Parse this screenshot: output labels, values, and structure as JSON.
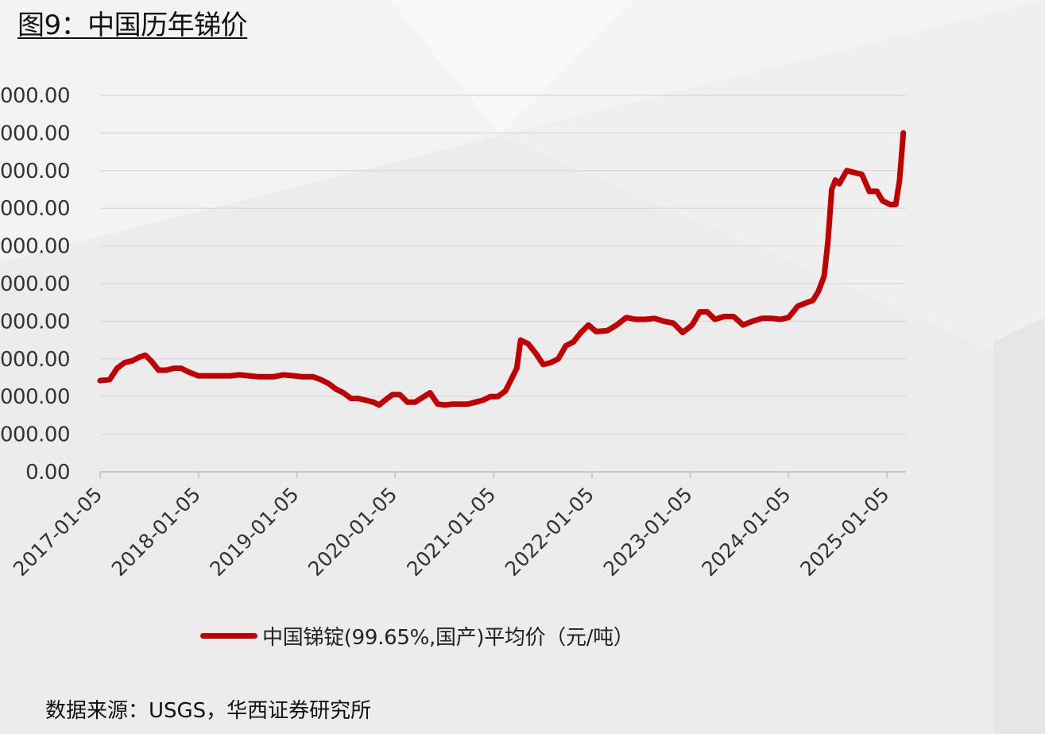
{
  "title": "图9：中国历年锑价",
  "source": "数据来源：USGS，华西证券研究所",
  "chart_data": {
    "type": "line",
    "ylim": [
      0,
      200000
    ],
    "y_ticks": [
      0,
      20000,
      40000,
      60000,
      80000,
      100000,
      120000,
      140000,
      160000,
      180000,
      200000
    ],
    "y_tick_labels": [
      "0.00",
      "000.00",
      "000.00",
      "000.00",
      "000.00",
      "000.00",
      "000.00",
      "000.00",
      "000.00",
      "000.00",
      "000.00"
    ],
    "x_tick_labels": [
      "2017-01-05",
      "2018-01-05",
      "2019-01-05",
      "2020-01-05",
      "2021-01-05",
      "2022-01-05",
      "2023-01-05",
      "2024-01-05",
      "2025-01-05"
    ],
    "grid": true,
    "legend_position": "bottom",
    "colors": {
      "series": "#c00000",
      "grid": "#dcdcdc",
      "axis": "#c8c8c8"
    },
    "series": [
      {
        "name": "中国锑锭(99.65%,国产)平均价（元/吨）",
        "points": [
          [
            "2017-01-05",
            48500
          ],
          [
            "2017-02-09",
            49000
          ],
          [
            "2017-03-09",
            55000
          ],
          [
            "2017-04-06",
            58000
          ],
          [
            "2017-05-04",
            59000
          ],
          [
            "2017-06-01",
            61000
          ],
          [
            "2017-06-22",
            62000
          ],
          [
            "2017-07-13",
            59000
          ],
          [
            "2017-08-10",
            54000
          ],
          [
            "2017-09-07",
            54000
          ],
          [
            "2017-10-05",
            55000
          ],
          [
            "2017-11-02",
            55000
          ],
          [
            "2017-11-30",
            53000
          ],
          [
            "2018-01-05",
            51000
          ],
          [
            "2018-03-01",
            51000
          ],
          [
            "2018-05-03",
            51000
          ],
          [
            "2018-06-07",
            51500
          ],
          [
            "2018-07-12",
            51000
          ],
          [
            "2018-08-16",
            50500
          ],
          [
            "2018-10-11",
            50500
          ],
          [
            "2018-11-15",
            51500
          ],
          [
            "2018-12-27",
            51000
          ],
          [
            "2019-01-24",
            50500
          ],
          [
            "2019-03-07",
            50500
          ],
          [
            "2019-04-04",
            49000
          ],
          [
            "2019-05-02",
            47000
          ],
          [
            "2019-05-30",
            44000
          ],
          [
            "2019-06-27",
            42000
          ],
          [
            "2019-07-25",
            39000
          ],
          [
            "2019-08-22",
            39000
          ],
          [
            "2019-09-19",
            38000
          ],
          [
            "2019-10-17",
            37000
          ],
          [
            "2019-11-07",
            35500
          ],
          [
            "2019-11-28",
            38000
          ],
          [
            "2019-12-26",
            41000
          ],
          [
            "2020-01-23",
            41000
          ],
          [
            "2020-02-20",
            37000
          ],
          [
            "2020-03-19",
            37000
          ],
          [
            "2020-04-16",
            39500
          ],
          [
            "2020-05-14",
            42000
          ],
          [
            "2020-06-11",
            36000
          ],
          [
            "2020-07-09",
            35500
          ],
          [
            "2020-08-06",
            36000
          ],
          [
            "2020-09-03",
            36000
          ],
          [
            "2020-10-01",
            36000
          ],
          [
            "2020-10-29",
            37000
          ],
          [
            "2020-11-26",
            38000
          ],
          [
            "2020-12-24",
            40000
          ],
          [
            "2021-01-21",
            40000
          ],
          [
            "2021-02-18",
            43000
          ],
          [
            "2021-03-11",
            49000
          ],
          [
            "2021-04-01",
            55000
          ],
          [
            "2021-04-15",
            70000
          ],
          [
            "2021-05-13",
            68000
          ],
          [
            "2021-06-10",
            63000
          ],
          [
            "2021-07-08",
            57000
          ],
          [
            "2021-08-05",
            58000
          ],
          [
            "2021-09-02",
            60000
          ],
          [
            "2021-09-30",
            67000
          ],
          [
            "2021-10-28",
            69000
          ],
          [
            "2021-11-25",
            74000
          ],
          [
            "2021-12-23",
            78000
          ],
          [
            "2022-01-20",
            74500
          ],
          [
            "2022-03-03",
            75000
          ],
          [
            "2022-04-07",
            78000
          ],
          [
            "2022-05-12",
            82000
          ],
          [
            "2022-06-16",
            81000
          ],
          [
            "2022-07-21",
            81000
          ],
          [
            "2022-08-25",
            81500
          ],
          [
            "2022-09-29",
            80000
          ],
          [
            "2022-11-03",
            79000
          ],
          [
            "2022-12-08",
            74000
          ],
          [
            "2023-01-12",
            78000
          ],
          [
            "2023-02-09",
            85000
          ],
          [
            "2023-03-09",
            85000
          ],
          [
            "2023-04-06",
            81000
          ],
          [
            "2023-05-11",
            82500
          ],
          [
            "2023-06-15",
            82500
          ],
          [
            "2023-07-20",
            78000
          ],
          [
            "2023-08-24",
            80000
          ],
          [
            "2023-09-28",
            81500
          ],
          [
            "2023-11-02",
            81500
          ],
          [
            "2023-12-07",
            81000
          ],
          [
            "2024-01-05",
            82000
          ],
          [
            "2024-02-08",
            88000
          ],
          [
            "2024-03-14",
            90000
          ],
          [
            "2024-04-04",
            91000
          ],
          [
            "2024-04-25",
            96000
          ],
          [
            "2024-05-16",
            104000
          ],
          [
            "2024-05-30",
            122000
          ],
          [
            "2024-06-13",
            150000
          ],
          [
            "2024-06-27",
            155000
          ],
          [
            "2024-07-11",
            153000
          ],
          [
            "2024-08-08",
            160000
          ],
          [
            "2024-09-05",
            159000
          ],
          [
            "2024-10-03",
            158000
          ],
          [
            "2024-10-31",
            149000
          ],
          [
            "2024-11-28",
            149000
          ],
          [
            "2024-12-19",
            144000
          ],
          [
            "2025-01-16",
            142000
          ],
          [
            "2025-02-06",
            142000
          ],
          [
            "2025-02-20",
            155000
          ],
          [
            "2025-03-06",
            180000
          ]
        ]
      }
    ]
  }
}
